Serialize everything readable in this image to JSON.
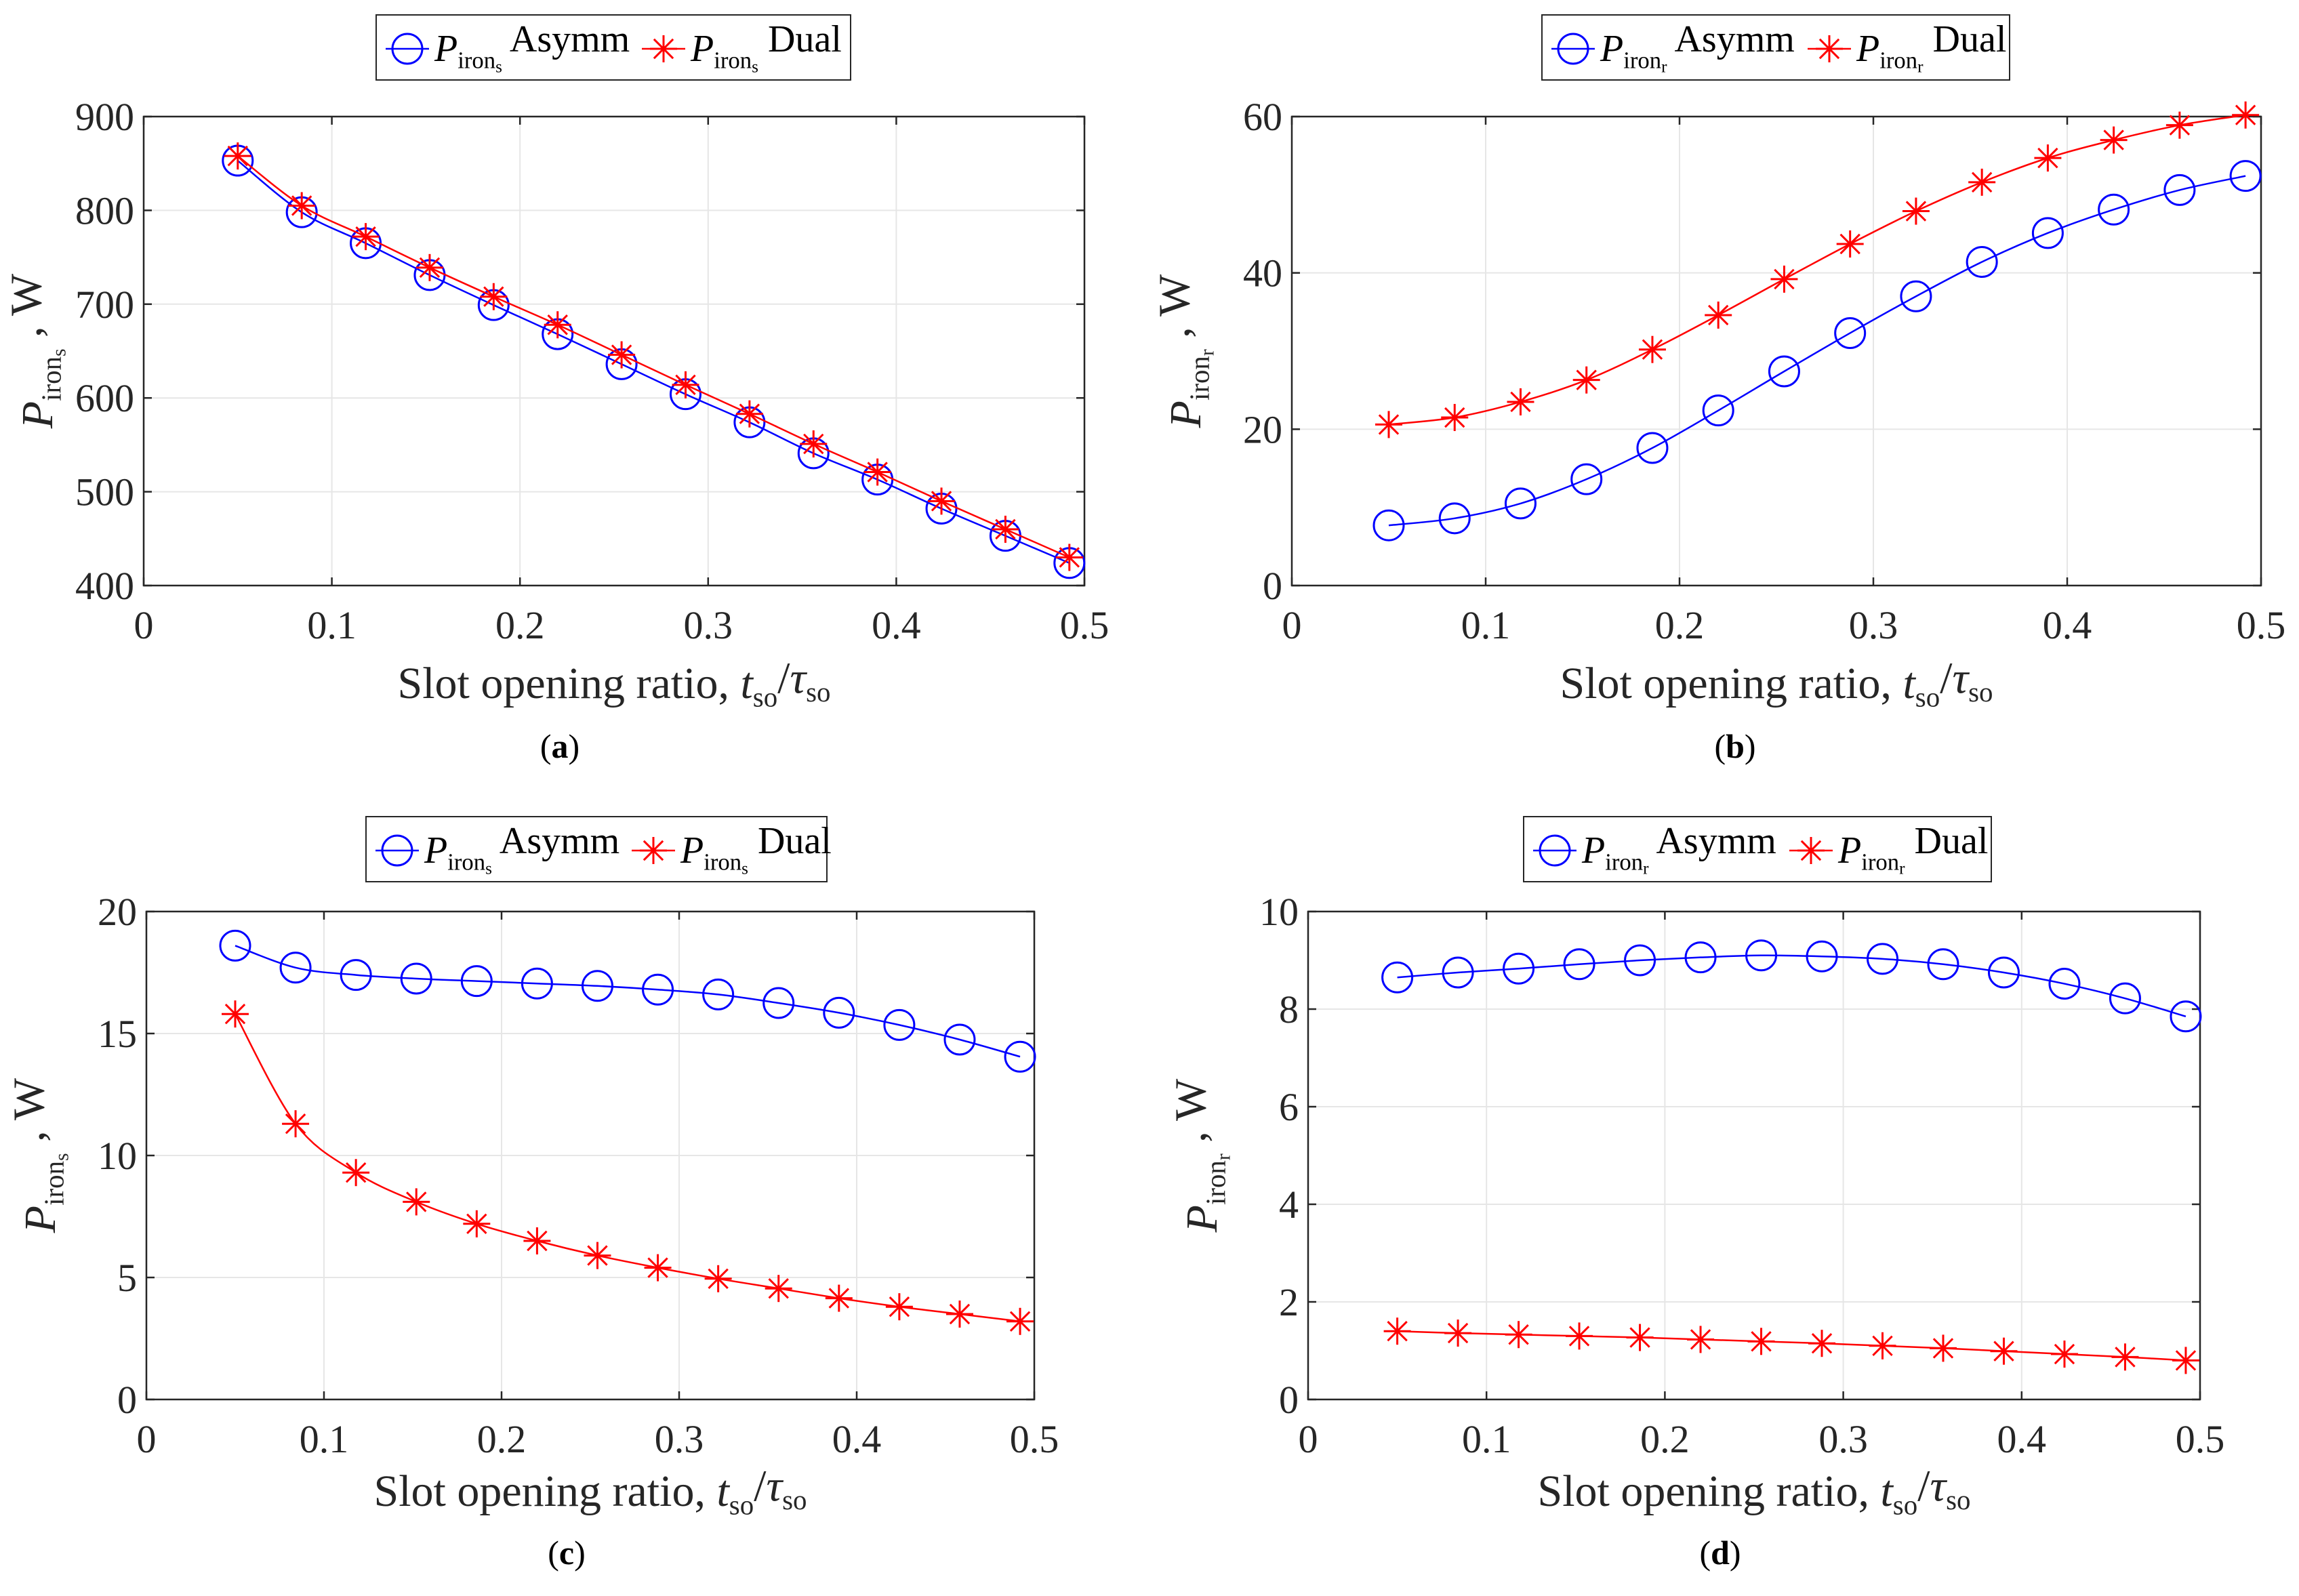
{
  "chart_data": [
    {
      "type": "line",
      "panel": "a",
      "caption": "(a)",
      "xlabel": "Slot opening ratio, t_so/τ_so",
      "ylabel": "P_irons, W",
      "xlim": [
        0,
        0.5
      ],
      "ylim": [
        400,
        900
      ],
      "xticks": [
        0,
        0.1,
        0.2,
        0.3,
        0.4,
        0.5
      ],
      "yticks": [
        400,
        500,
        600,
        700,
        800,
        900
      ],
      "x": [
        0.05,
        0.084,
        0.118,
        0.152,
        0.186,
        0.22,
        0.254,
        0.288,
        0.322,
        0.356,
        0.39,
        0.424,
        0.458,
        0.492
      ],
      "series": [
        {
          "name": "P_irons Asymm",
          "base": "P",
          "sub": "irons",
          "label": "Asymm",
          "color": "#0000ff",
          "marker": "circle",
          "values": [
            853,
            798,
            765,
            731,
            699,
            668,
            636,
            604,
            574,
            541,
            513,
            482,
            453,
            424
          ]
        },
        {
          "name": "P_irons Dual",
          "base": "P",
          "sub": "irons",
          "label": "Dual",
          "color": "#ff0000",
          "marker": "asterisk",
          "values": [
            858,
            805,
            772,
            739,
            708,
            678,
            646,
            614,
            583,
            551,
            521,
            490,
            460,
            430
          ]
        }
      ],
      "legend": "top"
    },
    {
      "type": "line",
      "panel": "b",
      "caption": "(b)",
      "xlabel": "Slot opening ratio, t_so/τ_so",
      "ylabel": "P_ironr, W",
      "xlim": [
        0,
        0.5
      ],
      "ylim": [
        0,
        60
      ],
      "xticks": [
        0,
        0.1,
        0.2,
        0.3,
        0.4,
        0.5
      ],
      "yticks": [
        0,
        20,
        40,
        60
      ],
      "x": [
        0.05,
        0.084,
        0.118,
        0.152,
        0.186,
        0.22,
        0.254,
        0.288,
        0.322,
        0.356,
        0.39,
        0.424,
        0.458,
        0.492
      ],
      "series": [
        {
          "name": "P_ironr Asymm",
          "base": "P",
          "sub": "ironr",
          "label": "Asymm",
          "color": "#0000ff",
          "marker": "circle",
          "values": [
            7.7,
            8.6,
            10.5,
            13.6,
            17.6,
            22.4,
            27.4,
            32.3,
            37.0,
            41.4,
            45.1,
            48.1,
            50.6,
            52.4
          ]
        },
        {
          "name": "P_ironr Dual",
          "base": "P",
          "sub": "ironr",
          "label": "Dual",
          "color": "#ff0000",
          "marker": "asterisk",
          "values": [
            20.6,
            21.5,
            23.5,
            26.3,
            30.2,
            34.6,
            39.2,
            43.7,
            47.9,
            51.6,
            54.7,
            57.0,
            58.9,
            60.2
          ]
        }
      ],
      "legend": "top"
    },
    {
      "type": "line",
      "panel": "c",
      "caption": "(c)",
      "xlabel": "Slot opening ratio, t_so/τ_so",
      "ylabel": "P_irons, W",
      "xlim": [
        0,
        0.5
      ],
      "ylim": [
        0,
        20
      ],
      "xticks": [
        0,
        0.1,
        0.2,
        0.3,
        0.4,
        0.5
      ],
      "yticks": [
        0,
        5,
        10,
        15,
        20
      ],
      "x": [
        0.05,
        0.084,
        0.118,
        0.152,
        0.186,
        0.22,
        0.254,
        0.288,
        0.322,
        0.356,
        0.39,
        0.424,
        0.458,
        0.492
      ],
      "series": [
        {
          "name": "P_irons Asymm",
          "base": "P",
          "sub": "irons",
          "label": "Asymm",
          "color": "#0000ff",
          "marker": "circle",
          "values": [
            18.6,
            17.7,
            17.4,
            17.25,
            17.15,
            17.05,
            16.95,
            16.8,
            16.6,
            16.25,
            15.85,
            15.35,
            14.75,
            14.05
          ]
        },
        {
          "name": "P_irons Dual",
          "base": "P",
          "sub": "irons",
          "label": "Dual",
          "color": "#ff0000",
          "marker": "asterisk",
          "values": [
            15.8,
            11.3,
            9.3,
            8.1,
            7.2,
            6.5,
            5.9,
            5.4,
            4.95,
            4.55,
            4.15,
            3.8,
            3.5,
            3.2
          ]
        }
      ],
      "legend": "top"
    },
    {
      "type": "line",
      "panel": "d",
      "caption": "(d)",
      "xlabel": "Slot opening ratio, t_so/τ_so",
      "ylabel": "P_ironr, W",
      "xlim": [
        0,
        0.5
      ],
      "ylim": [
        0,
        10
      ],
      "xticks": [
        0,
        0.1,
        0.2,
        0.3,
        0.4,
        0.5
      ],
      "yticks": [
        0,
        2,
        4,
        6,
        8,
        10
      ],
      "x": [
        0.05,
        0.084,
        0.118,
        0.152,
        0.186,
        0.22,
        0.254,
        0.288,
        0.322,
        0.356,
        0.39,
        0.424,
        0.458,
        0.492
      ],
      "series": [
        {
          "name": "P_ironr Asymm",
          "base": "P",
          "sub": "ironr",
          "label": "Asymm",
          "color": "#0000ff",
          "marker": "circle",
          "values": [
            8.65,
            8.75,
            8.83,
            8.92,
            9.0,
            9.06,
            9.1,
            9.08,
            9.03,
            8.92,
            8.75,
            8.52,
            8.22,
            7.85
          ]
        },
        {
          "name": "P_ironr Dual",
          "base": "P",
          "sub": "ironr",
          "label": "Dual",
          "color": "#ff0000",
          "marker": "asterisk",
          "values": [
            1.4,
            1.36,
            1.33,
            1.3,
            1.27,
            1.23,
            1.19,
            1.15,
            1.1,
            1.05,
            0.99,
            0.93,
            0.87,
            0.8
          ]
        }
      ],
      "legend": "top"
    }
  ]
}
